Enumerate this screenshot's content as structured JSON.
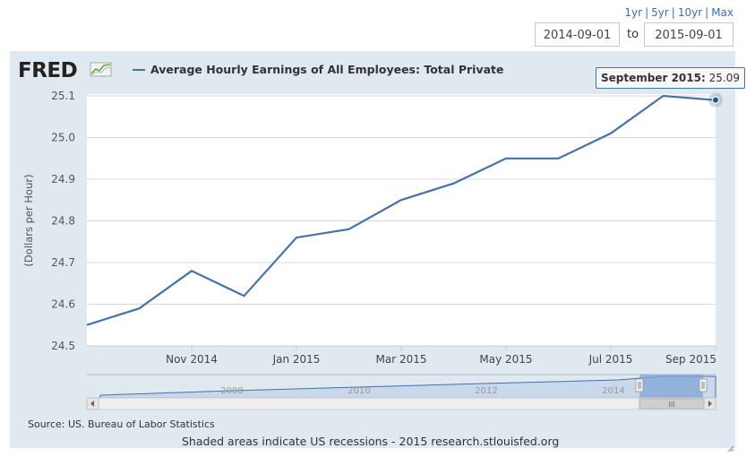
{
  "range_links": [
    "1yr",
    "5yr",
    "10yr",
    "Max"
  ],
  "date_range": {
    "start": "2014-09-01",
    "to_label": "to",
    "end": "2015-09-01"
  },
  "logo_text": "FRED",
  "tooltip": {
    "label": "September 2015:",
    "value": "25.09"
  },
  "source": "Source: US. Bureau of Labor Statistics",
  "footer_note": "Shaded areas indicate US recessions - 2015 research.stlouisfed.org",
  "navigator": {
    "year_labels": [
      "2008",
      "2010",
      "2012",
      "2014"
    ],
    "scroll_grip": "III"
  },
  "colors": {
    "series": "#4572a7",
    "panel": "#e1e9f0",
    "link": "#3a6db6"
  },
  "chart_data": {
    "type": "line",
    "title": "",
    "ylabel": "(Dollars per Hour)",
    "xlabel": "",
    "ylim": [
      24.5,
      25.1
    ],
    "yticks": [
      "24.5",
      "24.6",
      "24.7",
      "24.8",
      "24.9",
      "25.0",
      "25.1"
    ],
    "xtick_labels": [
      {
        "label": "Nov 2014",
        "index": 2
      },
      {
        "label": "Jan 2015",
        "index": 4
      },
      {
        "label": "Mar 2015",
        "index": 6
      },
      {
        "label": "May 2015",
        "index": 8
      },
      {
        "label": "Jul 2015",
        "index": 10
      },
      {
        "label": "Sep 2015",
        "index": 12
      }
    ],
    "grid": true,
    "legend_position": "top-left",
    "series": [
      {
        "name": "Average Hourly Earnings of All Employees: Total Private",
        "x": [
          "2014-09",
          "2014-10",
          "2014-11",
          "2014-12",
          "2015-01",
          "2015-02",
          "2015-03",
          "2015-04",
          "2015-05",
          "2015-06",
          "2015-07",
          "2015-08",
          "2015-09"
        ],
        "values": [
          24.55,
          24.59,
          24.68,
          24.62,
          24.76,
          24.78,
          24.85,
          24.89,
          24.95,
          24.95,
          25.01,
          25.1,
          25.09
        ]
      }
    ]
  }
}
